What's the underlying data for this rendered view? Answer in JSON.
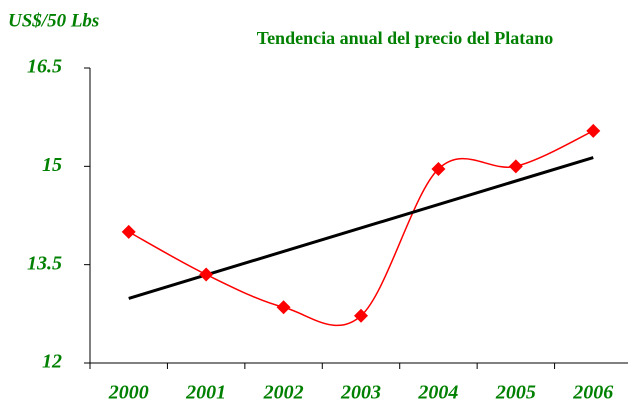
{
  "chart_data": {
    "type": "line",
    "title": "Tendencia anual del precio del Platano",
    "y_label": "US$/50 Lbs",
    "categories": [
      "2000",
      "2001",
      "2002",
      "2003",
      "2004",
      "2005",
      "2006"
    ],
    "series": [
      {
        "color": "#ff0000",
        "values": [
          14.0,
          13.35,
          12.85,
          12.72,
          14.96,
          15.0,
          15.54
        ]
      }
    ],
    "smooth": true,
    "marker": "diamond",
    "trendline": true,
    "trendline_color": "#000000",
    "text_color": "#008000",
    "ylim": [
      12,
      16.5
    ],
    "yticks": [
      12,
      13.5,
      15,
      16.5
    ],
    "grid": false
  }
}
